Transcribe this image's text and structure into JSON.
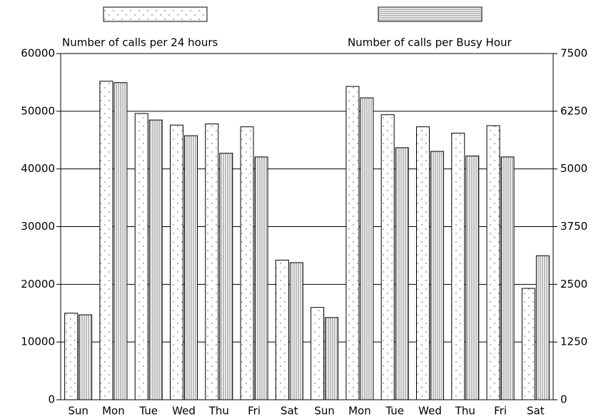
{
  "chart_data": {
    "type": "bar",
    "categories": [
      "Sun",
      "Mon",
      "Tue",
      "Wed",
      "Thu",
      "Fri",
      "Sat",
      "Sun",
      "Mon",
      "Tue",
      "Wed",
      "Thu",
      "Fri",
      "Sat"
    ],
    "series": [
      {
        "name": "Number of calls per 24 hours",
        "values": [
          15000,
          55200,
          49600,
          47600,
          47800,
          47300,
          24200,
          16000,
          54300,
          49400,
          47300,
          46200,
          47500,
          19300
        ]
      },
      {
        "name": "Number of calls per Busy Hour",
        "axis": "y2",
        "values": [
          1840,
          6870,
          6060,
          5720,
          5340,
          5260,
          2970,
          1780,
          6540,
          5460,
          5380,
          5280,
          5260,
          3120
        ]
      }
    ],
    "ylim": [
      0,
      60000
    ],
    "yticks": [
      0,
      10000,
      20000,
      30000,
      40000,
      50000,
      60000
    ],
    "y2lim": [
      0,
      7500
    ],
    "y2ticks": [
      0,
      1250,
      2500,
      3750,
      5000,
      6250,
      7500
    ],
    "grid": true
  }
}
